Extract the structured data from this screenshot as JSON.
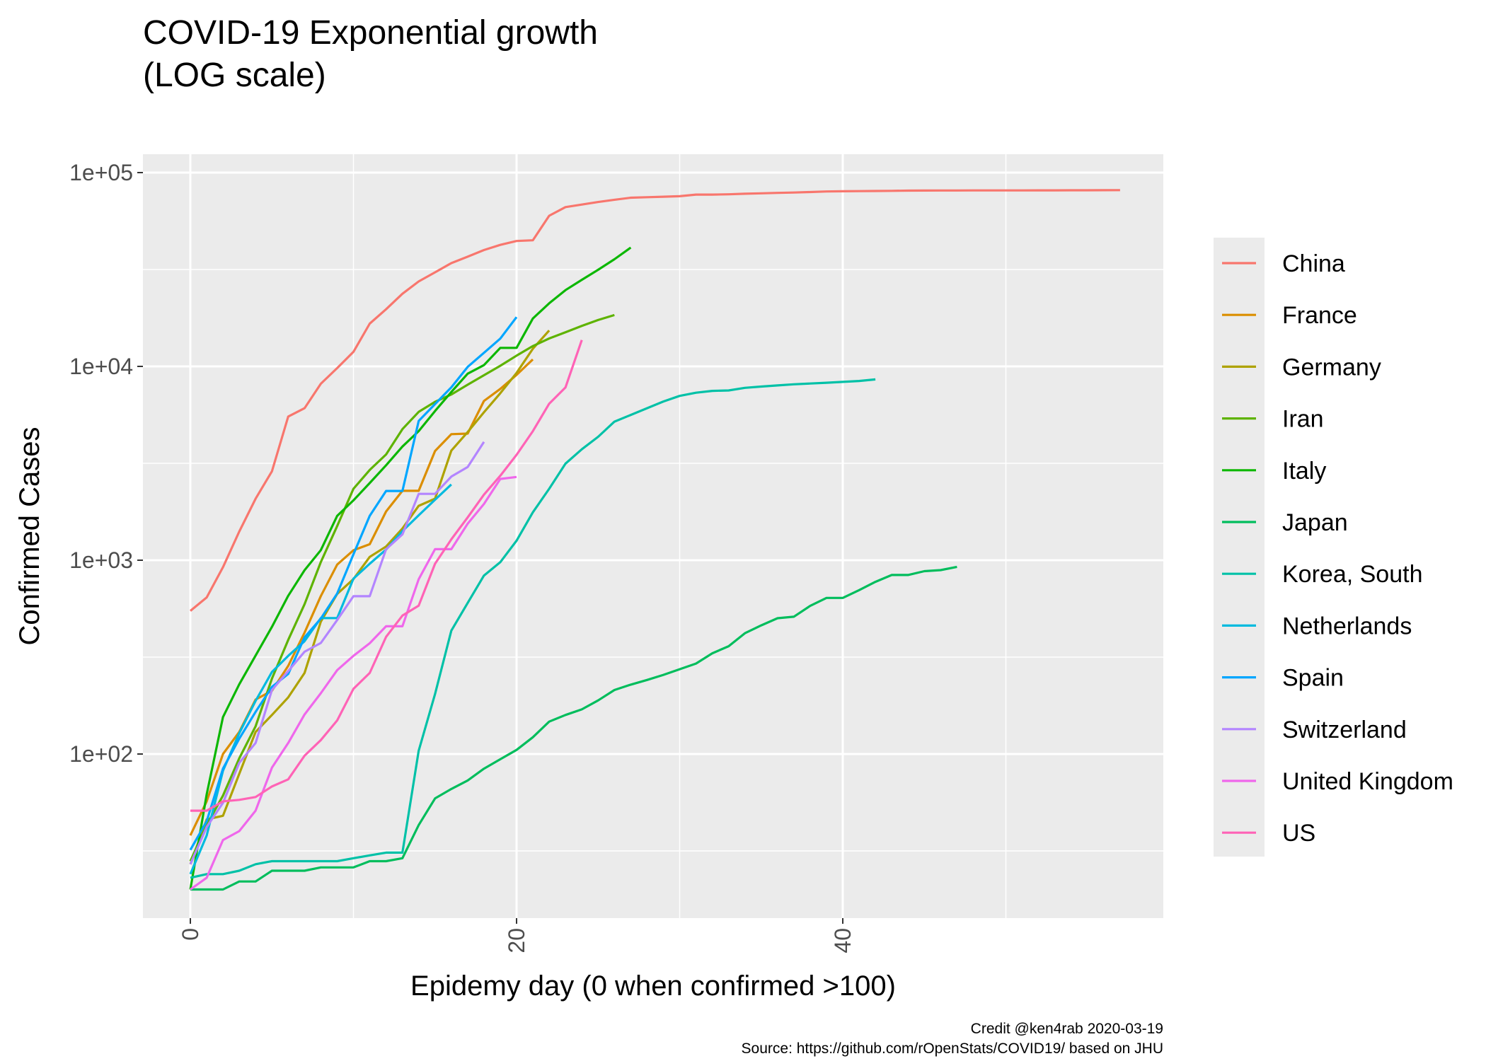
{
  "chart_data": {
    "type": "line",
    "title_lines": [
      "COVID-19 Exponential growth",
      "(LOG scale)"
    ],
    "xlabel": "Epidemy day (0 when confirmed >100)",
    "ylabel": "Confirmed Cases",
    "yscale": "log10",
    "xlim": [
      -3,
      60
    ],
    "ylim": [
      15,
      120000
    ],
    "x_ticks": [
      0,
      20,
      40
    ],
    "x_tick_labels": [
      "0",
      "20",
      "40"
    ],
    "y_ticks": [
      100,
      1000,
      10000,
      100000
    ],
    "y_tick_labels": [
      "1e+02",
      "1e+03",
      "1e+04",
      "1e+05"
    ],
    "grid": true,
    "legend_position": "right",
    "caption_lines": [
      "Credit @ken4rab 2020-03-19",
      "Source: https://github.com/rOpenStats/COVID19/ based on JHU"
    ],
    "series": [
      {
        "name": "China",
        "color": "#F8766D",
        "x": [
          0,
          1,
          2,
          3,
          4,
          5,
          6,
          7,
          8,
          9,
          10,
          11,
          12,
          13,
          14,
          15,
          16,
          17,
          18,
          19,
          20,
          21,
          22,
          23,
          24,
          25,
          26,
          27,
          28,
          29,
          30,
          31,
          32,
          33,
          34,
          35,
          36,
          37,
          38,
          39,
          40,
          41,
          42,
          43,
          44,
          45,
          46,
          47,
          48,
          49,
          50,
          51,
          52,
          53,
          54,
          55,
          56,
          57
        ],
        "y": [
          548,
          643,
          920,
          1406,
          2075,
          2877,
          5509,
          6087,
          8141,
          9802,
          11891,
          16630,
          19716,
          23707,
          27440,
          30587,
          34110,
          36814,
          39829,
          42354,
          44386,
          44759,
          59895,
          66358,
          68413,
          70513,
          72434,
          74211,
          74619,
          75077,
          75550,
          77001,
          77022,
          77241,
          77754,
          78166,
          78600,
          78928,
          79356,
          79932,
          80136,
          80261,
          80386,
          80537,
          80690,
          80770,
          80823,
          80860,
          80887,
          80921,
          80932,
          80945,
          80977,
          81003,
          81033,
          81058,
          81102,
          81156
        ]
      },
      {
        "name": "France",
        "color": "#DB8E00",
        "x": [
          0,
          1,
          2,
          3,
          4,
          5,
          6,
          7,
          8,
          9,
          10,
          11,
          12,
          13,
          14,
          15,
          16,
          17,
          18,
          19,
          20,
          21
        ],
        "y": [
          38,
          57,
          100,
          130,
          191,
          212,
          285,
          423,
          653,
          949,
          1126,
          1209,
          1784,
          2281,
          2281,
          3661,
          4469,
          4499,
          6633,
          7652,
          9043,
          10871
        ]
      },
      {
        "name": "Germany",
        "color": "#AEA200",
        "x": [
          0,
          1,
          2,
          3,
          4,
          5,
          6,
          7,
          8,
          9,
          10,
          11,
          12,
          13,
          14,
          15,
          16,
          17,
          18,
          19,
          20,
          21,
          22
        ],
        "y": [
          27,
          46,
          48,
          79,
          130,
          159,
          196,
          262,
          482,
          670,
          799,
          1040,
          1176,
          1457,
          1908,
          2078,
          3675,
          4585,
          5795,
          7272,
          9257,
          12327,
          15320
        ]
      },
      {
        "name": "Iran",
        "color": "#5EB300",
        "x": [
          0,
          1,
          2,
          3,
          4,
          5,
          6,
          7,
          8,
          9,
          10,
          11,
          12,
          13,
          14,
          15,
          16,
          17,
          18,
          19,
          20,
          21,
          22,
          23,
          24,
          25,
          26
        ],
        "y": [
          28,
          43,
          61,
          95,
          139,
          245,
          388,
          593,
          978,
          1501,
          2336,
          2922,
          3513,
          4747,
          5823,
          6566,
          7161,
          8042,
          9000,
          10075,
          11364,
          12729,
          13938,
          14991,
          16169,
          17361,
          18407
        ]
      },
      {
        "name": "Italy",
        "color": "#0CB702",
        "x": [
          0,
          1,
          2,
          3,
          4,
          5,
          6,
          7,
          8,
          9,
          10,
          11,
          12,
          13,
          14,
          15,
          16,
          17,
          18,
          19,
          20,
          21,
          22,
          23,
          24,
          25,
          26,
          27
        ],
        "y": [
          20,
          62,
          155,
          229,
          322,
          453,
          655,
          888,
          1128,
          1694,
          2036,
          2502,
          3089,
          3858,
          4636,
          5883,
          7375,
          9172,
          10149,
          12462,
          12462,
          17660,
          21157,
          24747,
          27980,
          31506,
          35713,
          41035
        ]
      },
      {
        "name": "Japan",
        "color": "#00BD5C",
        "x": [
          0,
          1,
          2,
          3,
          4,
          5,
          6,
          7,
          8,
          9,
          10,
          11,
          12,
          13,
          14,
          15,
          16,
          17,
          18,
          19,
          20,
          21,
          22,
          23,
          24,
          25,
          26,
          27,
          28,
          29,
          30,
          31,
          32,
          33,
          34,
          35,
          36,
          37,
          38,
          39,
          40,
          41,
          42,
          43,
          44,
          45,
          46,
          47
        ],
        "y": [
          20,
          20,
          20,
          22,
          22,
          25,
          25,
          25,
          26,
          26,
          26,
          28,
          28,
          29,
          43,
          59,
          66,
          73,
          84,
          94,
          105,
          122,
          147,
          159,
          170,
          189,
          214,
          228,
          241,
          256,
          274,
          293,
          331,
          360,
          420,
          461,
          502,
          511,
          581,
          639,
          639,
          701,
          773,
          839,
          839,
          878,
          889,
          924
        ]
      },
      {
        "name": "Korea, South",
        "color": "#00C1A7",
        "x": [
          0,
          1,
          2,
          3,
          4,
          5,
          6,
          7,
          8,
          9,
          10,
          11,
          12,
          13,
          14,
          15,
          16,
          17,
          18,
          19,
          20,
          21,
          22,
          23,
          24,
          25,
          26,
          27,
          28,
          29,
          30,
          31,
          32,
          33,
          34,
          35,
          36,
          37,
          38,
          39,
          40,
          41,
          42
        ],
        "y": [
          23,
          24,
          24,
          25,
          27,
          28,
          28,
          28,
          28,
          28,
          29,
          30,
          31,
          31,
          104,
          204,
          433,
          602,
          833,
          977,
          1261,
          1766,
          2337,
          3150,
          3736,
          4335,
          5186,
          5621,
          6088,
          6593,
          7041,
          7314,
          7478,
          7513,
          7755,
          7869,
          7979,
          8086,
          8162,
          8236,
          8320,
          8413,
          8565
        ]
      },
      {
        "name": "Netherlands",
        "color": "#00BADE",
        "x": [
          0,
          1,
          2,
          3,
          4,
          5,
          6,
          7,
          8,
          9,
          10,
          11,
          12,
          13,
          14,
          15,
          16
        ],
        "y": [
          24,
          38,
          82,
          128,
          188,
          265,
          321,
          382,
          503,
          503,
          804,
          959,
          1135,
          1413,
          1705,
          2051,
          2460
        ]
      },
      {
        "name": "Spain",
        "color": "#00A6FF",
        "x": [
          0,
          1,
          2,
          3,
          4,
          5,
          6,
          7,
          8,
          9,
          10,
          11,
          12,
          13,
          14,
          15,
          16,
          17,
          18,
          19,
          20
        ],
        "y": [
          32,
          45,
          84,
          120,
          165,
          222,
          259,
          400,
          500,
          673,
          1073,
          1695,
          2277,
          2277,
          5232,
          6391,
          7798,
          9942,
          11748,
          13910,
          17963
        ]
      },
      {
        "name": "Switzerland",
        "color": "#B385FF",
        "x": [
          0,
          1,
          2,
          3,
          4,
          5,
          6,
          7,
          8,
          9,
          10,
          11,
          12,
          13,
          14,
          15,
          16,
          17,
          18
        ],
        "y": [
          27,
          42,
          56,
          90,
          114,
          214,
          268,
          337,
          374,
          491,
          652,
          652,
          1139,
          1359,
          2200,
          2200,
          2700,
          3028,
          4075
        ]
      },
      {
        "name": "United Kingdom",
        "color": "#EF67EB",
        "x": [
          0,
          1,
          2,
          3,
          4,
          5,
          6,
          7,
          8,
          9,
          10,
          11,
          12,
          13,
          14,
          15,
          16,
          17,
          18,
          19,
          20
        ],
        "y": [
          20,
          23,
          36,
          40,
          51,
          85,
          114,
          160,
          206,
          271,
          321,
          373,
          456,
          456,
          798,
          1140,
          1140,
          1543,
          1950,
          2626,
          2689
        ]
      },
      {
        "name": "US",
        "color": "#FF63B6",
        "x": [
          0,
          1,
          2,
          3,
          4,
          5,
          6,
          7,
          8,
          9,
          10,
          11,
          12,
          13,
          14,
          15,
          16,
          17,
          18,
          19,
          20,
          21,
          22,
          23,
          24
        ],
        "y": [
          51,
          51,
          57,
          58,
          60,
          68,
          74,
          98,
          118,
          149,
          217,
          262,
          402,
          518,
          583,
          959,
          1281,
          1663,
          2179,
          2727,
          3499,
          4632,
          6421,
          7786,
          13677
        ]
      }
    ]
  }
}
